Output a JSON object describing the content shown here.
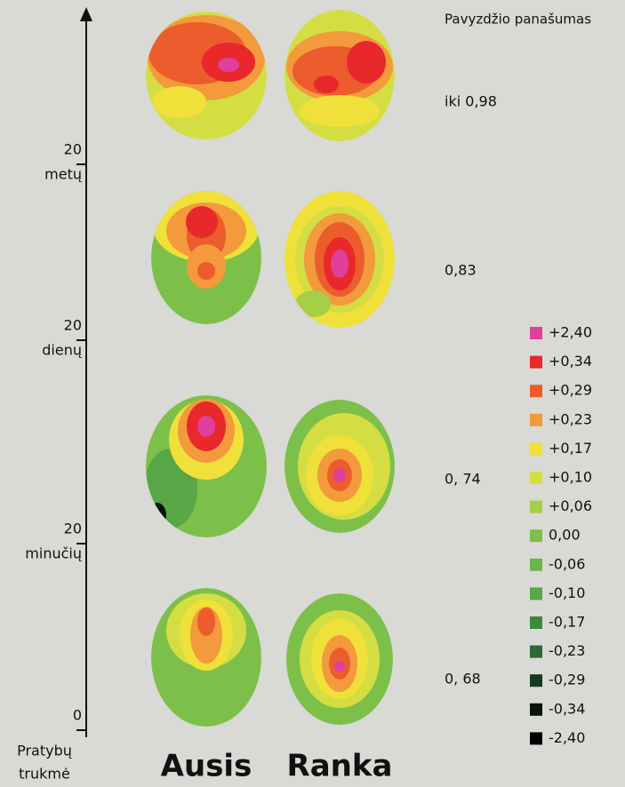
{
  "title": "Pavyzdžio panašumas",
  "time_axis": {
    "title_lines": [
      "Pratybų",
      "trukmė"
    ],
    "ticks": [
      {
        "number": "20",
        "unit": "metų"
      },
      {
        "number": "20",
        "unit": "dienų"
      },
      {
        "number": "20",
        "unit": "minučių"
      },
      {
        "number": "0"
      }
    ]
  },
  "similarity": [
    "iki 0,98",
    "0,83",
    "0, 74",
    "0, 68"
  ],
  "columns": [
    {
      "label": "Ausis",
      "color": "#5aaa42"
    },
    {
      "label": "Ranka",
      "color": "#e8383a"
    }
  ],
  "legend": [
    {
      "label": "+2,40",
      "color": "#e0409c"
    },
    {
      "label": "+0,34",
      "color": "#e8282a"
    },
    {
      "label": "+0,29",
      "color": "#ec5c2c"
    },
    {
      "label": "+0,23",
      "color": "#f29a3c"
    },
    {
      "label": "+0,17",
      "color": "#f0e03a"
    },
    {
      "label": "+0,10",
      "color": "#d4de42"
    },
    {
      "label": "+0,06",
      "color": "#a6cf48"
    },
    {
      "label": "0,00",
      "color": "#7cc04a"
    },
    {
      "label": "-0,06",
      "color": "#6ab44a"
    },
    {
      "label": "-0,10",
      "color": "#58a646"
    },
    {
      "label": "-0,17",
      "color": "#3c8a40"
    },
    {
      "label": "-0,23",
      "color": "#2a6a34"
    },
    {
      "label": "-0,29",
      "color": "#163a1e"
    },
    {
      "label": "-0,34",
      "color": "#0a140a"
    },
    {
      "label": "-2,40",
      "color": "#000000"
    }
  ]
}
